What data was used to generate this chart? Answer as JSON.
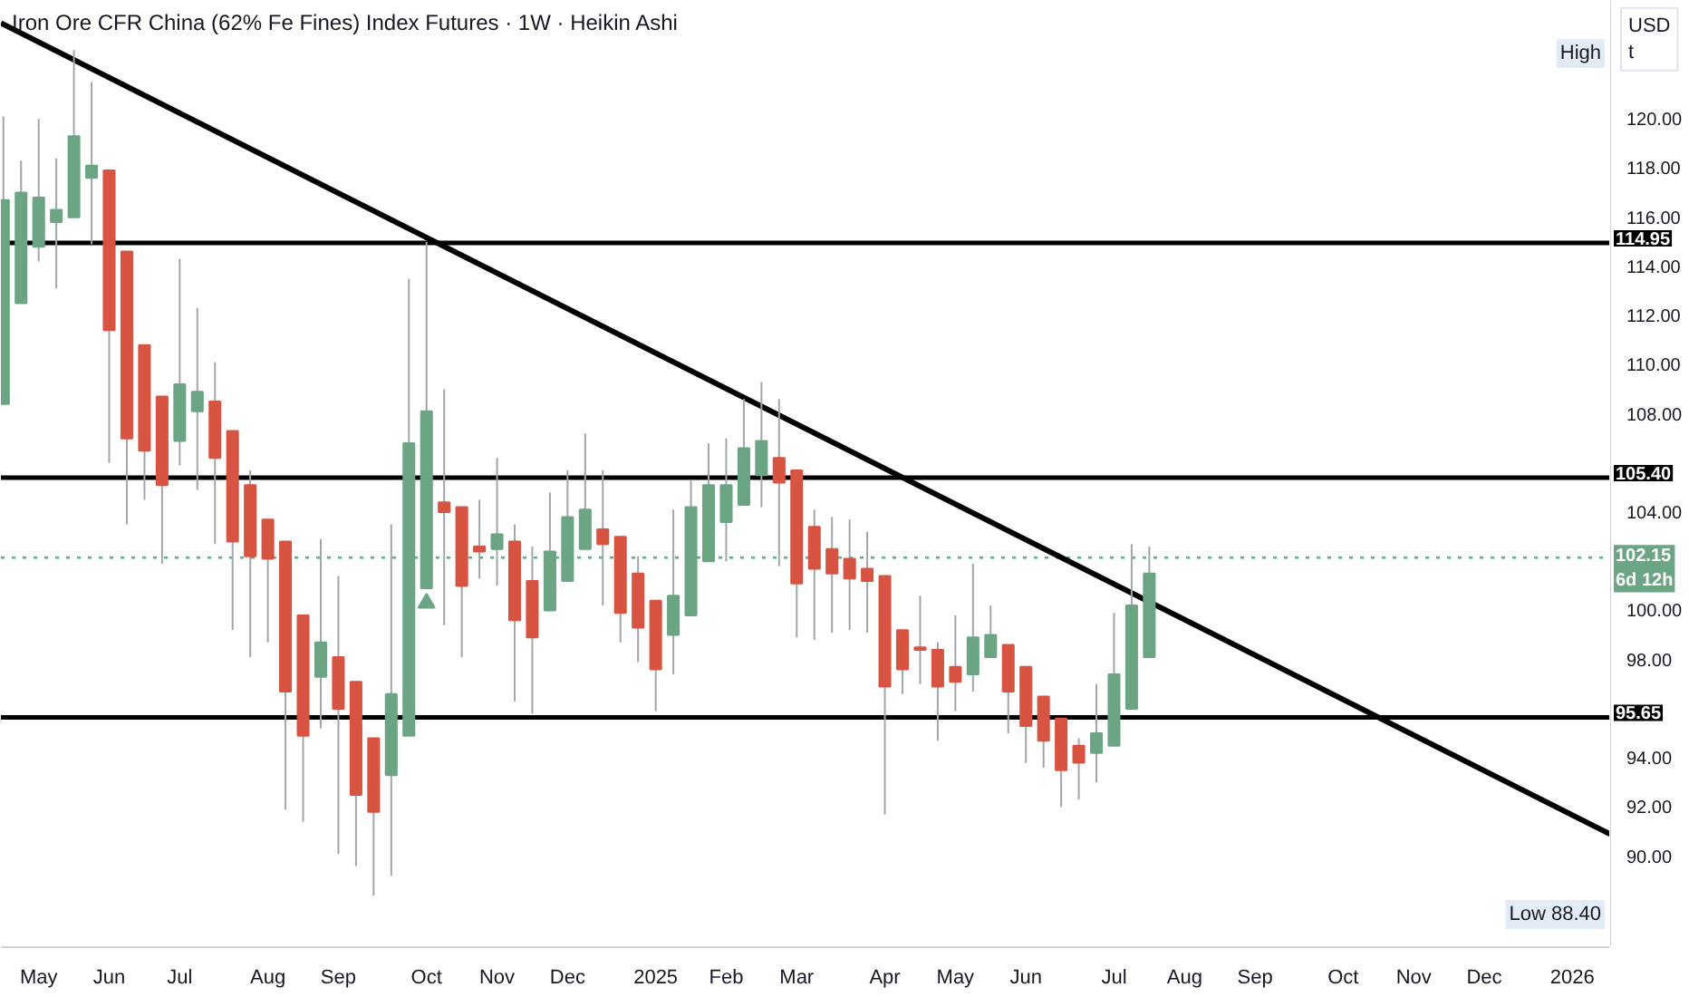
{
  "chart_data": {
    "type": "candlestick",
    "title": "Iron Ore CFR China (62% Fe Fines) Index Futures · 1W · Heikin Ashi",
    "ylabel": "USD\nt",
    "x": [
      "2024-04-22",
      "2024-04-29",
      "2024-05-06",
      "2024-05-13",
      "2024-05-20",
      "2024-05-27",
      "2024-06-03",
      "2024-06-10",
      "2024-06-17",
      "2024-06-24",
      "2024-07-01",
      "2024-07-08",
      "2024-07-15",
      "2024-07-22",
      "2024-07-29",
      "2024-08-05",
      "2024-08-12",
      "2024-08-19",
      "2024-08-26",
      "2024-09-02",
      "2024-09-09",
      "2024-09-16",
      "2024-09-23",
      "2024-09-30",
      "2024-10-07",
      "2024-10-14",
      "2024-10-21",
      "2024-10-28",
      "2024-11-04",
      "2024-11-11",
      "2024-11-18",
      "2024-11-25",
      "2024-12-02",
      "2024-12-09",
      "2024-12-16",
      "2024-12-23",
      "2024-12-30",
      "2025-01-06",
      "2025-01-13",
      "2025-01-20",
      "2025-01-27",
      "2025-02-03",
      "2025-02-10",
      "2025-02-17",
      "2025-02-24",
      "2025-03-03",
      "2025-03-10",
      "2025-03-17",
      "2025-03-24",
      "2025-03-31",
      "2025-04-07",
      "2025-04-14",
      "2025-04-21",
      "2025-04-28",
      "2025-05-05",
      "2025-05-12",
      "2025-05-19",
      "2025-05-26",
      "2025-06-02",
      "2025-06-09",
      "2025-06-16",
      "2025-06-23",
      "2025-06-30",
      "2025-07-07",
      "2025-07-14",
      "2025-07-21"
    ],
    "ohlc": [
      [
        108.4,
        120.1,
        108.4,
        116.7
      ],
      [
        112.5,
        118.3,
        112.5,
        117.0
      ],
      [
        114.8,
        120.0,
        114.2,
        116.8
      ],
      [
        115.8,
        118.4,
        113.1,
        116.3
      ],
      [
        116.0,
        122.8,
        116.0,
        119.3
      ],
      [
        117.6,
        121.5,
        114.9,
        118.1
      ],
      [
        117.9,
        117.9,
        106.0,
        111.4
      ],
      [
        114.6,
        114.6,
        103.5,
        107.0
      ],
      [
        110.8,
        110.8,
        104.5,
        106.5
      ],
      [
        108.7,
        108.7,
        101.9,
        105.1
      ],
      [
        106.9,
        114.3,
        105.9,
        109.2
      ],
      [
        108.1,
        112.3,
        104.9,
        108.9
      ],
      [
        108.5,
        110.1,
        102.7,
        106.2
      ],
      [
        107.3,
        107.3,
        99.2,
        102.8
      ],
      [
        105.1,
        105.7,
        98.1,
        102.2
      ],
      [
        103.7,
        103.7,
        98.7,
        102.1
      ],
      [
        102.8,
        102.8,
        91.9,
        96.7
      ],
      [
        99.8,
        99.8,
        91.4,
        94.9
      ],
      [
        97.3,
        102.9,
        95.2,
        98.7
      ],
      [
        98.1,
        101.4,
        90.1,
        96.0
      ],
      [
        97.1,
        97.1,
        89.6,
        92.5
      ],
      [
        94.8,
        94.8,
        88.4,
        91.8
      ],
      [
        93.3,
        103.5,
        89.2,
        96.6
      ],
      [
        94.9,
        113.5,
        94.9,
        106.8
      ],
      [
        100.9,
        115.0,
        100.9,
        108.1
      ],
      [
        104.4,
        109.0,
        99.4,
        104.0
      ],
      [
        104.2,
        104.2,
        98.1,
        101.0
      ],
      [
        102.6,
        104.5,
        101.3,
        102.4
      ],
      [
        102.5,
        106.2,
        101.0,
        103.1
      ],
      [
        102.8,
        103.5,
        96.3,
        99.6
      ],
      [
        101.2,
        102.6,
        95.8,
        98.9
      ],
      [
        100.0,
        104.8,
        100.0,
        102.4
      ],
      [
        101.2,
        105.7,
        101.2,
        103.8
      ],
      [
        102.5,
        107.2,
        102.5,
        104.1
      ],
      [
        103.3,
        105.7,
        100.2,
        102.7
      ],
      [
        103.0,
        103.0,
        98.7,
        99.9
      ],
      [
        101.5,
        102.2,
        97.9,
        99.3
      ],
      [
        100.4,
        100.4,
        95.9,
        97.6
      ],
      [
        99.0,
        104.1,
        97.4,
        100.6
      ],
      [
        99.8,
        105.3,
        99.8,
        104.2
      ],
      [
        102.0,
        106.8,
        102.0,
        105.1
      ],
      [
        103.6,
        107.0,
        102.0,
        105.1
      ],
      [
        104.3,
        108.6,
        104.3,
        106.6
      ],
      [
        105.5,
        109.3,
        104.2,
        106.9
      ],
      [
        106.2,
        108.6,
        101.8,
        105.2
      ],
      [
        105.7,
        105.7,
        98.9,
        101.1
      ],
      [
        103.4,
        104.1,
        98.8,
        101.7
      ],
      [
        102.5,
        103.8,
        99.1,
        101.5
      ],
      [
        102.1,
        103.7,
        99.2,
        101.3
      ],
      [
        101.7,
        103.2,
        99.1,
        101.2
      ],
      [
        101.4,
        101.4,
        91.7,
        96.9
      ],
      [
        99.2,
        99.2,
        96.6,
        97.6
      ],
      [
        98.5,
        100.6,
        97.0,
        98.4
      ],
      [
        98.4,
        98.7,
        94.7,
        96.9
      ],
      [
        97.7,
        99.8,
        95.9,
        97.1
      ],
      [
        97.4,
        101.9,
        96.7,
        98.9
      ],
      [
        98.1,
        100.2,
        98.1,
        99.0
      ],
      [
        98.6,
        98.6,
        95.0,
        96.7
      ],
      [
        97.7,
        97.7,
        93.8,
        95.3
      ],
      [
        96.5,
        96.5,
        93.6,
        94.7
      ],
      [
        95.6,
        95.6,
        92.0,
        93.5
      ],
      [
        94.5,
        94.8,
        92.3,
        93.8
      ],
      [
        94.2,
        97.0,
        93.0,
        95.0
      ],
      [
        94.5,
        99.9,
        94.5,
        97.4
      ],
      [
        96.0,
        102.7,
        96.0,
        100.2
      ],
      [
        98.1,
        102.6,
        98.1,
        101.5
      ]
    ],
    "colors": [
      "#6ba583",
      "#6ba583",
      "#6ba583",
      "#6ba583",
      "#6ba583",
      "#6ba583",
      "#d75442",
      "#d75442",
      "#d75442",
      "#d75442",
      "#6ba583",
      "#6ba583",
      "#d75442",
      "#d75442",
      "#d75442",
      "#d75442",
      "#d75442",
      "#d75442",
      "#6ba583",
      "#d75442",
      "#d75442",
      "#d75442",
      "#6ba583",
      "#6ba583",
      "#6ba583",
      "#d75442",
      "#d75442",
      "#d75442",
      "#6ba583",
      "#d75442",
      "#d75442",
      "#6ba583",
      "#6ba583",
      "#6ba583",
      "#d75442",
      "#d75442",
      "#d75442",
      "#d75442",
      "#6ba583",
      "#6ba583",
      "#6ba583",
      "#6ba583",
      "#6ba583",
      "#6ba583",
      "#d75442",
      "#d75442",
      "#d75442",
      "#d75442",
      "#d75442",
      "#d75442",
      "#d75442",
      "#d75442",
      "#d75442",
      "#d75442",
      "#d75442",
      "#6ba583",
      "#6ba583",
      "#d75442",
      "#d75442",
      "#d75442",
      "#d75442",
      "#d75442",
      "#6ba583",
      "#6ba583",
      "#6ba583",
      "#6ba583"
    ],
    "series": [
      {
        "type": "line",
        "x": [
          "2024-04-21",
          "2026-01-20"
        ],
        "values": [
          123.9,
          90.9
        ],
        "color": "#000000"
      },
      {
        "type": "scatter",
        "x": [
          "2024-10-07"
        ],
        "values": [
          100.3
        ],
        "color": "#6ba583",
        "marker": "triangle"
      }
    ],
    "xlim": [
      "2024-04-21",
      "2026-01-20"
    ],
    "xticks": [
      {
        "value": "2024-05-06",
        "label": "May"
      },
      {
        "value": "2024-06-03",
        "label": "Jun"
      },
      {
        "value": "2024-07-01",
        "label": "Jul"
      },
      {
        "value": "2024-08-05",
        "label": "Aug"
      },
      {
        "value": "2024-09-02",
        "label": "Sep"
      },
      {
        "value": "2024-10-07",
        "label": "Oct"
      },
      {
        "value": "2024-11-04",
        "label": "Nov"
      },
      {
        "value": "2024-12-02",
        "label": "Dec"
      },
      {
        "value": "2025-01-06",
        "label": "2025"
      },
      {
        "value": "2025-02-03",
        "label": "Feb"
      },
      {
        "value": "2025-03-03",
        "label": "Mar"
      },
      {
        "value": "2025-04-07",
        "label": "Apr"
      },
      {
        "value": "2025-05-05",
        "label": "May"
      },
      {
        "value": "2025-06-02",
        "label": "Jun"
      },
      {
        "value": "2025-07-07",
        "label": "Jul"
      },
      {
        "value": "2025-08-04",
        "label": "Aug"
      },
      {
        "value": "2025-09-01",
        "label": "Sep"
      },
      {
        "value": "2025-10-06",
        "label": "Oct"
      },
      {
        "value": "2025-11-03",
        "label": "Nov"
      },
      {
        "value": "2025-12-01",
        "label": "Dec"
      },
      {
        "value": "2026-01-05",
        "label": "2026"
      }
    ],
    "ylim": [
      86.3,
      124.8
    ],
    "yticks": [
      {
        "value": 90,
        "label": "90.00"
      },
      {
        "value": 92,
        "label": "92.00"
      },
      {
        "value": 94,
        "label": "94.00"
      },
      {
        "value": 98,
        "label": "98.00"
      },
      {
        "value": 100,
        "label": "100.00"
      },
      {
        "value": 104,
        "label": "104.00"
      },
      {
        "value": 108,
        "label": "108.00"
      },
      {
        "value": 110,
        "label": "110.00"
      },
      {
        "value": 112,
        "label": "112.00"
      },
      {
        "value": 114,
        "label": "114.00"
      },
      {
        "value": 116,
        "label": "116.00"
      },
      {
        "value": 118,
        "label": "118.00"
      },
      {
        "value": 120,
        "label": "120.00"
      }
    ],
    "ref_lines": [
      {
        "axis": "y",
        "value": 114.95,
        "label": "114.95",
        "color": "#000000"
      },
      {
        "axis": "y",
        "value": 105.4,
        "label": "105.40",
        "color": "#000000"
      },
      {
        "axis": "y",
        "value": 95.65,
        "label": "95.65",
        "color": "#000000"
      },
      {
        "axis": "y",
        "value": 102.15,
        "label": "102.15\n6d 12h",
        "color": "#6ba583",
        "line_style": "dotted"
      }
    ],
    "annotations": [
      "High",
      "Low 88.40"
    ]
  }
}
